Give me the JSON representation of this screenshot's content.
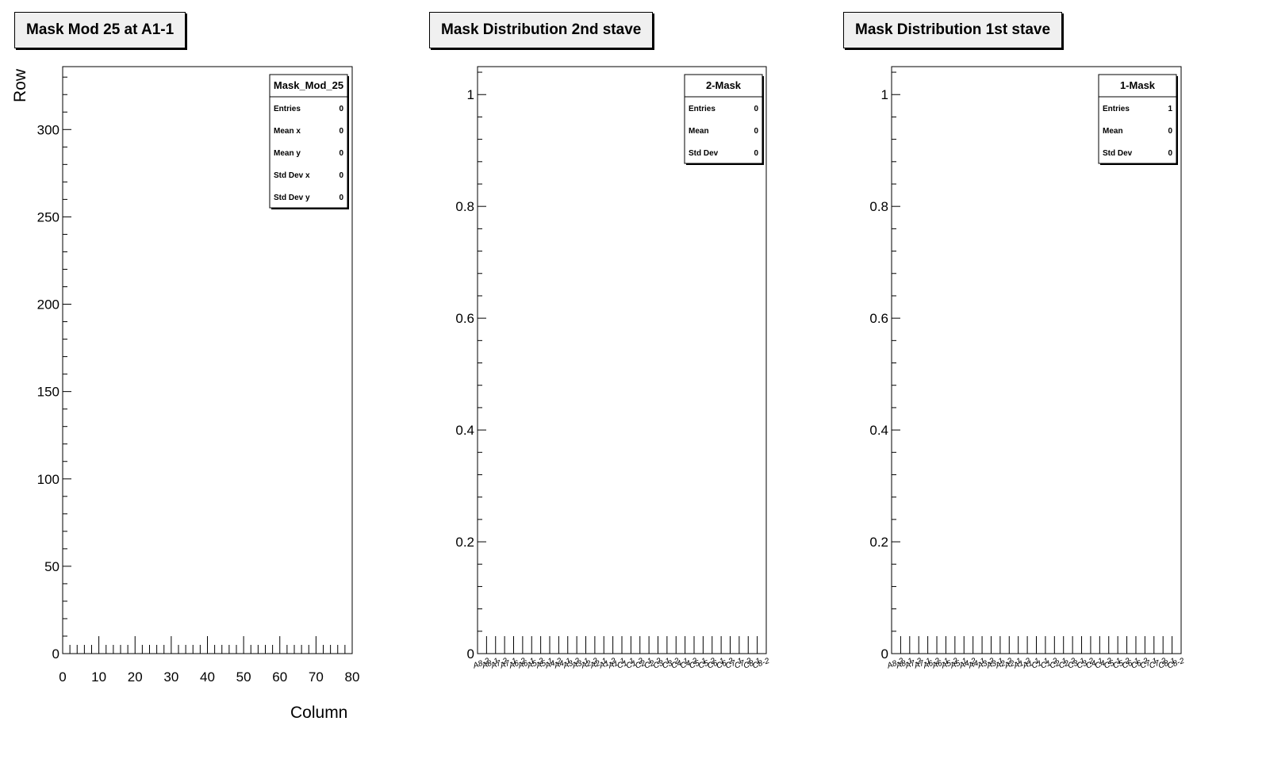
{
  "chart_data": [
    {
      "type": "heatmap",
      "title": "Mask Mod 25 at A1-1",
      "xlabel": "Column",
      "ylabel": "Row",
      "xlim": [
        0,
        80
      ],
      "ylim": [
        0,
        336
      ],
      "x_ticks": [
        0,
        10,
        20,
        30,
        40,
        50,
        60,
        70,
        80
      ],
      "y_ticks": [
        0,
        50,
        100,
        150,
        200,
        250,
        300
      ],
      "points": [],
      "stats": {
        "name": "Mask_Mod_25",
        "rows": [
          {
            "label": "Entries",
            "value": "0"
          },
          {
            "label": "Mean x",
            "value": "0"
          },
          {
            "label": "Mean y",
            "value": "0"
          },
          {
            "label": "Std Dev x",
            "value": "0"
          },
          {
            "label": "Std Dev y",
            "value": "0"
          }
        ]
      }
    },
    {
      "type": "bar",
      "title": "Mask Distribution 2nd stave",
      "xlabel": "",
      "ylabel": "",
      "ylim": [
        0,
        1.05
      ],
      "y_ticks": [
        0,
        0.2,
        0.4,
        0.6,
        0.8,
        1
      ],
      "categories": [
        "A8-2",
        "A8-1",
        "A7-2",
        "A7-1",
        "A6-2",
        "A6-1",
        "A5-2",
        "A5-1",
        "A4-2",
        "A4-1",
        "A3-2",
        "A3-1",
        "A2-2",
        "A2-1",
        "A1-2",
        "A1-1",
        "C1-1",
        "C1-2",
        "C2-1",
        "C2-2",
        "C3-1",
        "C3-2",
        "C4-1",
        "C4-2",
        "C5-1",
        "C5-2",
        "C6-1",
        "C6-2",
        "C7-1",
        "C7-2",
        "C8-1",
        "C8-2"
      ],
      "values": [
        0,
        0,
        0,
        0,
        0,
        0,
        0,
        0,
        0,
        0,
        0,
        0,
        0,
        0,
        0,
        0,
        0,
        0,
        0,
        0,
        0,
        0,
        0,
        0,
        0,
        0,
        0,
        0,
        0,
        0,
        0,
        0
      ],
      "stats": {
        "name": "2-Mask",
        "rows": [
          {
            "label": "Entries",
            "value": "0"
          },
          {
            "label": "Mean",
            "value": "0"
          },
          {
            "label": "Std Dev",
            "value": "0"
          }
        ]
      }
    },
    {
      "type": "bar",
      "title": "Mask Distribution 1st stave",
      "xlabel": "",
      "ylabel": "",
      "ylim": [
        0,
        1.05
      ],
      "y_ticks": [
        0,
        0.2,
        0.4,
        0.6,
        0.8,
        1
      ],
      "categories": [
        "A8-2",
        "A8-1",
        "A7-2",
        "A7-1",
        "A6-2",
        "A6-1",
        "A5-2",
        "A5-1",
        "A4-2",
        "A4-1",
        "A3-2",
        "A3-1",
        "A2-2",
        "A2-1",
        "A1-2",
        "A1-1",
        "C1-1",
        "C1-2",
        "C2-1",
        "C2-2",
        "C3-1",
        "C3-2",
        "C4-1",
        "C4-2",
        "C5-1",
        "C5-2",
        "C6-1",
        "C6-2",
        "C7-1",
        "C7-2",
        "C8-1",
        "C8-2"
      ],
      "values": [
        0,
        0,
        0,
        0,
        0,
        0,
        0,
        0,
        0,
        0,
        0,
        0,
        0,
        0,
        0,
        0,
        0,
        0,
        0,
        0,
        0,
        0,
        0,
        0,
        0,
        0,
        0,
        0,
        0,
        0,
        0,
        0
      ],
      "stats": {
        "name": "1-Mask",
        "rows": [
          {
            "label": "Entries",
            "value": "1"
          },
          {
            "label": "Mean",
            "value": "0"
          },
          {
            "label": "Std Dev",
            "value": "0"
          }
        ]
      }
    }
  ]
}
